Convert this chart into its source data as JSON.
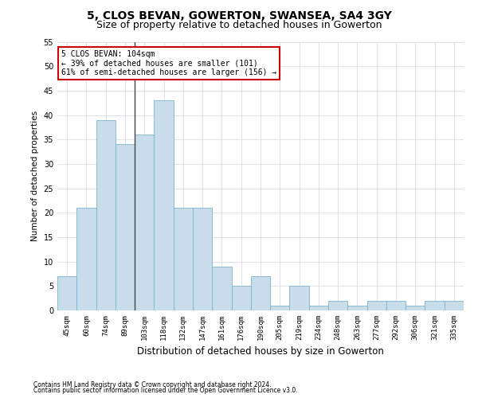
{
  "title": "5, CLOS BEVAN, GOWERTON, SWANSEA, SA4 3GY",
  "subtitle": "Size of property relative to detached houses in Gowerton",
  "xlabel": "Distribution of detached houses by size in Gowerton",
  "ylabel": "Number of detached properties",
  "categories": [
    "45sqm",
    "60sqm",
    "74sqm",
    "89sqm",
    "103sqm",
    "118sqm",
    "132sqm",
    "147sqm",
    "161sqm",
    "176sqm",
    "190sqm",
    "205sqm",
    "219sqm",
    "234sqm",
    "248sqm",
    "263sqm",
    "277sqm",
    "292sqm",
    "306sqm",
    "321sqm",
    "335sqm"
  ],
  "values": [
    7,
    21,
    39,
    34,
    36,
    43,
    21,
    21,
    9,
    5,
    7,
    1,
    5,
    1,
    2,
    1,
    2,
    2,
    1,
    2,
    2
  ],
  "bar_color": "#c9dcea",
  "bar_edge_color": "#7ab4d0",
  "vline_index": 4,
  "vline_color": "#444444",
  "annotation_text": "5 CLOS BEVAN: 104sqm\n← 39% of detached houses are smaller (101)\n61% of semi-detached houses are larger (156) →",
  "annotation_box_color": "#ffffff",
  "annotation_box_edge": "#cc0000",
  "ylim": [
    0,
    55
  ],
  "yticks": [
    0,
    5,
    10,
    15,
    20,
    25,
    30,
    35,
    40,
    45,
    50,
    55
  ],
  "footer_line1": "Contains HM Land Registry data © Crown copyright and database right 2024.",
  "footer_line2": "Contains public sector information licensed under the Open Government Licence v3.0.",
  "title_fontsize": 10,
  "subtitle_fontsize": 9,
  "background_color": "#ffffff",
  "grid_color": "#d0d8e0"
}
